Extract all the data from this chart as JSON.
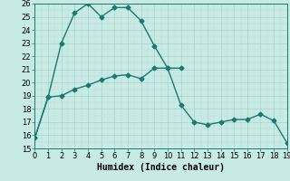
{
  "title": "",
  "xlabel": "Humidex (Indice chaleur)",
  "ylabel": "",
  "background_color": "#c8eae4",
  "line_color": "#1a7a6e",
  "ylim": [
    15,
    26
  ],
  "xlim": [
    0,
    19
  ],
  "yticks": [
    15,
    16,
    17,
    18,
    19,
    20,
    21,
    22,
    23,
    24,
    25,
    26
  ],
  "xticks": [
    0,
    1,
    2,
    3,
    4,
    5,
    6,
    7,
    8,
    9,
    10,
    11,
    12,
    13,
    14,
    15,
    16,
    17,
    18,
    19
  ],
  "curve1_x": [
    0,
    1,
    2,
    3,
    4,
    5,
    6,
    7,
    8,
    9,
    10,
    11,
    12,
    13,
    14,
    15,
    16,
    17,
    18,
    19
  ],
  "curve1_y": [
    15.8,
    18.9,
    19.0,
    19.5,
    19.8,
    20.2,
    20.5,
    20.6,
    20.3,
    21.1,
    21.1,
    18.3,
    17.0,
    16.8,
    17.0,
    17.2,
    17.2,
    17.6,
    17.1,
    15.4
  ],
  "curve2_x": [
    0,
    1,
    2,
    3,
    4,
    5,
    6,
    7,
    8,
    9,
    10,
    11
  ],
  "curve2_y": [
    15.8,
    18.9,
    23.0,
    25.3,
    26.0,
    25.0,
    25.7,
    25.7,
    24.7,
    22.8,
    21.1,
    21.1
  ],
  "marker": "D",
  "markersize": 2.5,
  "linewidth": 1.0,
  "grid_color": "#a8d4cc",
  "minor_grid_color": "#bcddd8",
  "xlabel_fontsize": 7,
  "tick_fontsize": 6
}
